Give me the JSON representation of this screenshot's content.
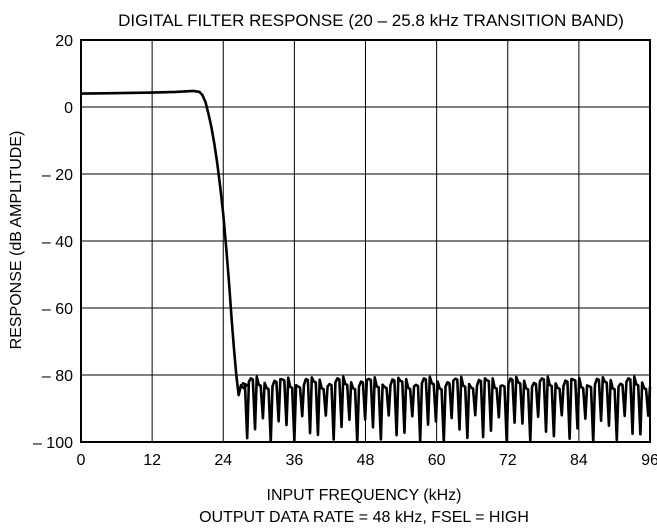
{
  "chart_data": {
    "type": "line",
    "title": "DIGITAL FILTER RESPONSE (20 – 25.8 kHz TRANSITION BAND)",
    "xlabel": "INPUT FREQUENCY (kHz)",
    "subtitle": "OUTPUT DATA RATE = 48 kHz, FSEL = HIGH",
    "ylabel": "RESPONSE (dB AMPLITUDE)",
    "xlim": [
      0,
      96
    ],
    "ylim": [
      -100,
      20
    ],
    "x_ticks": [
      0,
      12,
      24,
      36,
      48,
      60,
      72,
      84,
      96
    ],
    "x_tick_labels": [
      "0",
      "12",
      "24",
      "36",
      "48",
      "60",
      "72",
      "84",
      "96"
    ],
    "y_ticks": [
      20,
      0,
      -20,
      -40,
      -60,
      -80,
      -100
    ],
    "y_tick_labels": [
      "20",
      "0",
      "– 20",
      "– 40",
      "– 60",
      "– 80",
      "– 100"
    ],
    "grid": true,
    "series": [
      {
        "x": [
          0,
          4,
          8,
          12,
          16,
          19,
          20,
          20.5,
          21,
          21.5,
          22,
          22.5,
          23,
          23.5,
          24,
          24.5,
          25,
          25.4,
          25.8,
          26.2,
          26.6,
          27,
          27.5,
          28
        ],
        "y": [
          4,
          4.1,
          4.2,
          4.3,
          4.5,
          4.8,
          4.5,
          3.5,
          1.5,
          -2,
          -6,
          -11,
          -17,
          -24,
          -32,
          -42,
          -53,
          -63,
          -72,
          -80,
          -86,
          -83,
          -84,
          -83
        ],
        "stopband": {
          "x_start": 27,
          "x_end": 96,
          "lobe_count": 52,
          "peak_db": -82.5,
          "peak_db_range": [
            -81,
            -84
          ],
          "null_db": -97,
          "null_db_range": [
            -92,
            -100
          ]
        }
      }
    ]
  }
}
